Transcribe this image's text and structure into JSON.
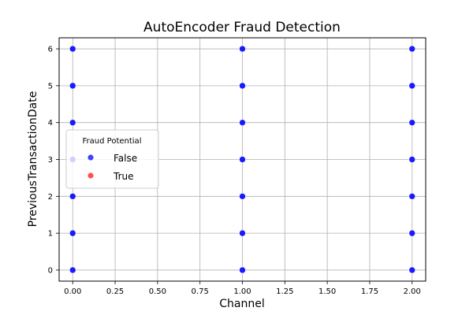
{
  "chart_data": {
    "type": "scatter",
    "title": "AutoEncoder Fraud Detection",
    "xlabel": "Channel",
    "ylabel": "PreviousTransactionDate",
    "xlim": [
      -0.08,
      2.08
    ],
    "ylim": [
      -0.3,
      6.3
    ],
    "xticks": [
      "0.00",
      "0.25",
      "0.50",
      "0.75",
      "1.00",
      "1.25",
      "1.50",
      "1.75",
      "2.00"
    ],
    "xtick_values": [
      0,
      0.25,
      0.5,
      0.75,
      1.0,
      1.25,
      1.5,
      1.75,
      2.0
    ],
    "yticks": [
      "0",
      "1",
      "2",
      "3",
      "4",
      "5",
      "6"
    ],
    "ytick_values": [
      0,
      1,
      2,
      3,
      4,
      5,
      6
    ],
    "grid": true,
    "legend": {
      "title": "Fraud Potential",
      "placement": "center-left",
      "entries": [
        {
          "label": "False",
          "color": "#4040ff"
        },
        {
          "label": "True",
          "color": "#ff5050"
        }
      ]
    },
    "series": [
      {
        "name": "False",
        "color": "#1a1aff",
        "points": [
          {
            "x": 0,
            "y": 0
          },
          {
            "x": 0,
            "y": 1
          },
          {
            "x": 0,
            "y": 2
          },
          {
            "x": 0,
            "y": 3
          },
          {
            "x": 0,
            "y": 4
          },
          {
            "x": 0,
            "y": 5
          },
          {
            "x": 0,
            "y": 6
          },
          {
            "x": 1,
            "y": 0
          },
          {
            "x": 1,
            "y": 1
          },
          {
            "x": 1,
            "y": 2
          },
          {
            "x": 1,
            "y": 3
          },
          {
            "x": 1,
            "y": 4
          },
          {
            "x": 1,
            "y": 5
          },
          {
            "x": 1,
            "y": 6
          },
          {
            "x": 2,
            "y": 0
          },
          {
            "x": 2,
            "y": 1
          },
          {
            "x": 2,
            "y": 2
          },
          {
            "x": 2,
            "y": 3
          },
          {
            "x": 2,
            "y": 4
          },
          {
            "x": 2,
            "y": 5
          },
          {
            "x": 2,
            "y": 6
          }
        ]
      },
      {
        "name": "True",
        "color": "#ff5050",
        "points": []
      }
    ]
  }
}
